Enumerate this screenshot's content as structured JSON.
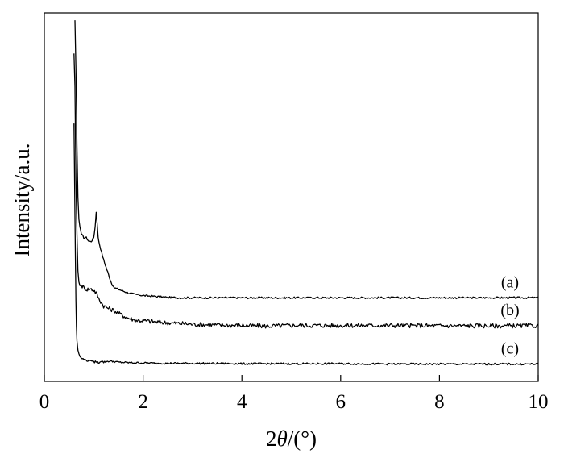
{
  "chart_data": {
    "type": "line",
    "title": "",
    "xlabel": "2θ/(°)",
    "xlabel_parts": {
      "prefix": "2",
      "symbol": "θ",
      "suffix": "/(°)"
    },
    "ylabel": "Intensity/a.u.",
    "xlim": [
      0,
      10
    ],
    "x_ticks": [
      "0",
      "2",
      "4",
      "6",
      "8",
      "10"
    ],
    "y_tick_labels": false,
    "grid": false,
    "legend": "none",
    "colors": {
      "line": "#000000",
      "axis": "#000000",
      "background": "#ffffff"
    },
    "series": [
      {
        "name": "(a)",
        "x": [
          0.62,
          0.64,
          0.66,
          0.68,
          0.7,
          0.72,
          0.75,
          0.8,
          0.85,
          0.9,
          0.95,
          1.0,
          1.03,
          1.05,
          1.07,
          1.09,
          1.12,
          1.16,
          1.2,
          1.25,
          1.3,
          1.35,
          1.4,
          1.5,
          1.6,
          1.7,
          1.8,
          1.9,
          2.0,
          2.1,
          2.2,
          2.3,
          2.4,
          2.5,
          2.6,
          2.7,
          2.8,
          3.0,
          3.5,
          4.0,
          5.0,
          6.0,
          7.0,
          8.0,
          9.0,
          10.0
        ],
        "y": [
          0.98,
          0.85,
          0.64,
          0.5,
          0.44,
          0.42,
          0.4,
          0.39,
          0.39,
          0.38,
          0.38,
          0.39,
          0.42,
          0.46,
          0.43,
          0.39,
          0.37,
          0.35,
          0.33,
          0.31,
          0.29,
          0.27,
          0.255,
          0.25,
          0.245,
          0.24,
          0.237,
          0.235,
          0.233,
          0.232,
          0.231,
          0.23,
          0.229,
          0.228,
          0.228,
          0.227,
          0.227,
          0.227,
          0.227,
          0.227,
          0.227,
          0.227,
          0.227,
          0.227,
          0.227,
          0.227
        ]
      },
      {
        "name": "(b)",
        "x": [
          0.6,
          0.62,
          0.64,
          0.66,
          0.68,
          0.7,
          0.72,
          0.75,
          0.8,
          0.85,
          0.9,
          0.95,
          1.0,
          1.05,
          1.1,
          1.2,
          1.3,
          1.4,
          1.5,
          1.6,
          1.7,
          1.8,
          1.9,
          2.0,
          2.2,
          2.4,
          2.6,
          2.8,
          3.0,
          3.5,
          4.0,
          4.5,
          5.0,
          6.0,
          7.0,
          8.0,
          9.0,
          10.0
        ],
        "y": [
          0.89,
          0.8,
          0.55,
          0.4,
          0.3,
          0.27,
          0.26,
          0.26,
          0.255,
          0.25,
          0.25,
          0.25,
          0.248,
          0.24,
          0.225,
          0.205,
          0.198,
          0.193,
          0.185,
          0.178,
          0.172,
          0.168,
          0.165,
          0.165,
          0.162,
          0.16,
          0.158,
          0.157,
          0.155,
          0.153,
          0.152,
          0.15,
          0.152,
          0.152,
          0.152,
          0.151,
          0.151,
          0.151
        ]
      },
      {
        "name": "(c)",
        "x": [
          0.6,
          0.61,
          0.62,
          0.63,
          0.64,
          0.65,
          0.66,
          0.68,
          0.7,
          0.72,
          0.75,
          0.8,
          0.85,
          0.9,
          0.95,
          1.0,
          1.05,
          1.1,
          1.15,
          1.2,
          1.3,
          1.4,
          1.5,
          1.7,
          2.0,
          2.5,
          3.0,
          4.0,
          5.0,
          6.0,
          7.0,
          8.0,
          9.0,
          10.0
        ],
        "y": [
          0.7,
          0.58,
          0.45,
          0.33,
          0.22,
          0.15,
          0.11,
          0.085,
          0.075,
          0.068,
          0.063,
          0.06,
          0.057,
          0.056,
          0.058,
          0.052,
          0.054,
          0.05,
          0.056,
          0.052,
          0.055,
          0.054,
          0.052,
          0.051,
          0.05,
          0.049,
          0.049,
          0.048,
          0.048,
          0.048,
          0.047,
          0.047,
          0.047,
          0.047
        ]
      }
    ]
  }
}
